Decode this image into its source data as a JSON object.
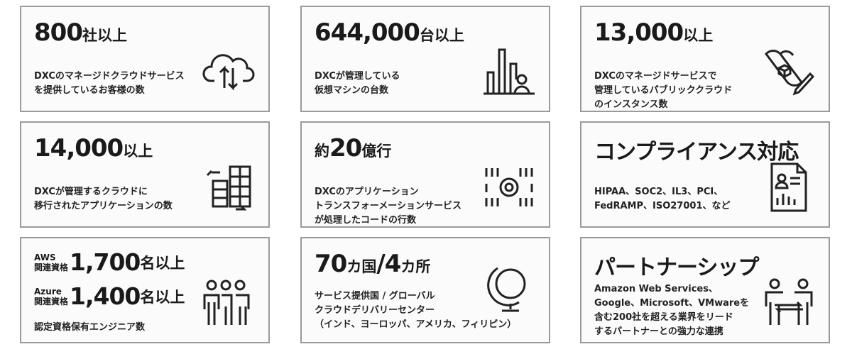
{
  "cards": [
    {
      "value": "800",
      "suffix": "社以上",
      "desc": "DXCのマネージドクラウドサービス\nを提供しているお客様の数",
      "icon": "cloud-upload-download-icon"
    },
    {
      "value": "644,000",
      "suffix": "台以上",
      "desc": "DXCが管理している\n仮想マシンの台数",
      "icon": "bar-chart-person-icon"
    },
    {
      "value": "13,000",
      "suffix": "以上",
      "desc": "DXCのマネージドサービスで\n管理しているパブリッククラウド\nのインスタンス数",
      "icon": "blueprint-pencil-icon"
    },
    {
      "value": "14,000",
      "suffix": "以上",
      "desc": "DXCが管理するクラウドに\n移行されたアプリケーションの数",
      "icon": "server-migration-icon"
    },
    {
      "prefix": "約",
      "value": "20",
      "suffix": "億行",
      "desc": "DXCのアプリケーション\nトランスフォーメーションサービス\nが処理したコードの行数",
      "icon": "binary-gear-icon"
    },
    {
      "title": "コンプライアンス対応",
      "desc": "HIPAA、SOC2、IL3、PCI、\nFedRAMP、ISO27001、など",
      "icon": "document-profile-icon"
    },
    {
      "rows": [
        {
          "label": "AWS\n関連資格",
          "value": "1,700",
          "suffix": "名以上"
        },
        {
          "label": "Azure\n関連資格",
          "value": "1,400",
          "suffix": "名以上"
        }
      ],
      "desc": "認定資格保有エンジニア数",
      "icon": "people-group-icon"
    },
    {
      "value": "70",
      "suffix": "カ国",
      "sep": "/",
      "value2": "4",
      "suffix2": "カ所",
      "desc": "サービス提供国 / グローバル\nクラウドデリバリーセンター\n（インド、ヨーロッパ、アメリカ、フィリピン）",
      "icon": "globe-icon"
    },
    {
      "title": "パートナーシップ",
      "desc": "Amazon Web Services、\nGoogle、Microsoft、VMwareを\n含む200社を超える業界をリード\nするパートナーとの強力な連携",
      "icon": "partnership-icon"
    }
  ]
}
